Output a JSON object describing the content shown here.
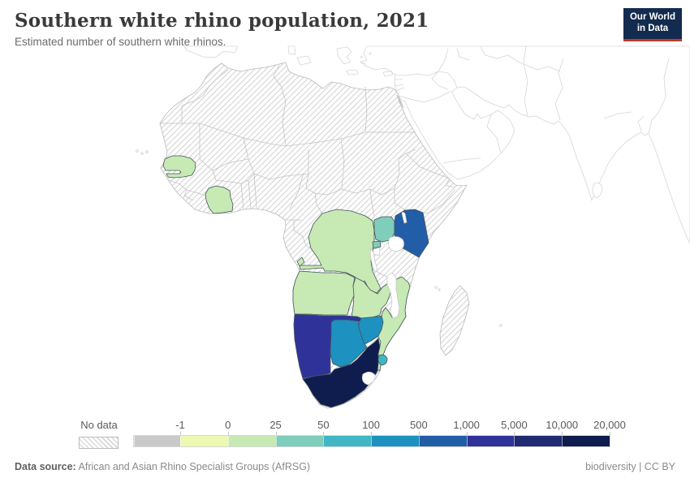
{
  "header": {
    "title": "Southern white rhino population, 2021",
    "subtitle": "Estimated number of southern white rhinos."
  },
  "logo": {
    "line1": "Our World",
    "line2": "in Data",
    "bg_color": "#122b4e",
    "accent_color": "#c0392b"
  },
  "legend": {
    "no_data_label": "No data",
    "ticks": [
      "-1",
      "0",
      "25",
      "50",
      "100",
      "500",
      "1,000",
      "5,000",
      "10,000",
      "20,000"
    ],
    "gray_cap_color": "#c9c9c9",
    "bin_colors": [
      "#edf8b1",
      "#c7e9b4",
      "#7fcdbb",
      "#41b6c4",
      "#1d91c0",
      "#225ea8",
      "#2f3399",
      "#1f2a70",
      "#0e1d4e"
    ]
  },
  "footer": {
    "source_label": "Data source:",
    "source_text": "African and Asian Rhino Specialist Groups (AfRSG)",
    "license_text": "biodiversity | CC BY"
  },
  "chart_data": {
    "type": "choropleth",
    "title": "Southern white rhino population, 2021",
    "subtitle": "Estimated number of southern white rhinos.",
    "year": 2021,
    "region_shown": "Africa, with surrounding Europe / Middle East / South Asia landmass uncolored",
    "no_data_style": "diagonal hatching",
    "legend_ticks": [
      -1,
      0,
      25,
      50,
      100,
      500,
      1000,
      5000,
      10000,
      20000
    ],
    "bins": [
      {
        "range": "-1 to 0",
        "color": "#edf8b1"
      },
      {
        "range": "0 to 25",
        "color": "#c7e9b4"
      },
      {
        "range": "25 to 50",
        "color": "#7fcdbb"
      },
      {
        "range": "50 to 100",
        "color": "#41b6c4"
      },
      {
        "range": "100 to 500",
        "color": "#1d91c0"
      },
      {
        "range": "500 to 1,000",
        "color": "#225ea8"
      },
      {
        "range": "1,000 to 5,000",
        "color": "#2f3399"
      },
      {
        "range": "5,000 to 10,000",
        "color": "#1f2a70"
      },
      {
        "range": "10,000 to 20,000",
        "color": "#0e1d4e"
      }
    ],
    "countries": [
      {
        "name": "Senegal",
        "bin": "0 to 25",
        "color": "#c7e9b4"
      },
      {
        "name": "Côte d'Ivoire",
        "bin": "0 to 25",
        "color": "#c7e9b4"
      },
      {
        "name": "Democratic Republic of Congo",
        "bin": "0 to 25",
        "color": "#c7e9b4"
      },
      {
        "name": "Angola",
        "bin": "0 to 25",
        "color": "#c7e9b4"
      },
      {
        "name": "Zambia",
        "bin": "0 to 25",
        "color": "#c7e9b4"
      },
      {
        "name": "Mozambique",
        "bin": "0 to 25",
        "color": "#c7e9b4"
      },
      {
        "name": "Uganda",
        "bin": "25 to 50",
        "color": "#7fcdbb"
      },
      {
        "name": "Rwanda",
        "bin": "25 to 50",
        "color": "#7fcdbb"
      },
      {
        "name": "Eswatini",
        "bin": "50 to 100",
        "color": "#41b6c4"
      },
      {
        "name": "Zimbabwe",
        "bin": "100 to 500",
        "color": "#1d91c0"
      },
      {
        "name": "Botswana",
        "bin": "100 to 500",
        "color": "#1d91c0"
      },
      {
        "name": "Kenya",
        "bin": "500 to 1,000",
        "color": "#225ea8"
      },
      {
        "name": "Namibia",
        "bin": "1,000 to 5,000",
        "color": "#2f3399"
      },
      {
        "name": "South Africa",
        "bin": "10,000 to 20,000",
        "color": "#0e1d4e"
      }
    ]
  }
}
